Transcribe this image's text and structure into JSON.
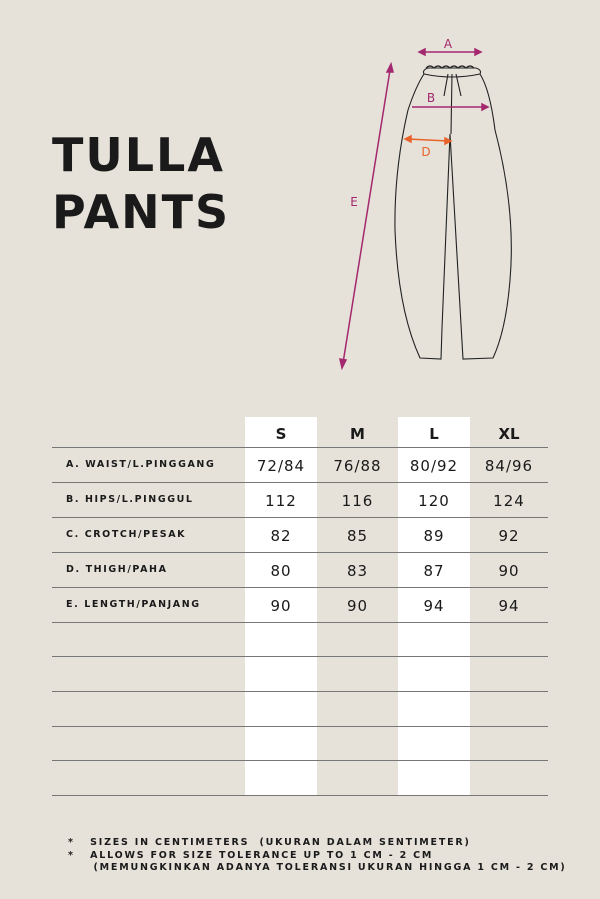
{
  "title": {
    "line1": "TULLA",
    "line2": "PANTS"
  },
  "diagram": {
    "labels": {
      "a": "A",
      "b": "B",
      "d": "D",
      "e": "E"
    },
    "colors": {
      "measure": "#a3286e",
      "crotch": "#e8622a"
    }
  },
  "table": {
    "sizes": [
      "S",
      "M",
      "L",
      "XL"
    ],
    "rows": [
      {
        "label": "A. WAIST/L.PINGGANG",
        "values": [
          "72/84",
          "76/88",
          "80/92",
          "84/96"
        ]
      },
      {
        "label": "B. HIPS/L.PINGGUL",
        "values": [
          "112",
          "116",
          "120",
          "124"
        ]
      },
      {
        "label": "C. CROTCH/PESAK",
        "values": [
          "82",
          "85",
          "89",
          "92"
        ]
      },
      {
        "label": "D. THIGH/PAHA",
        "values": [
          "80",
          "83",
          "87",
          "90"
        ]
      },
      {
        "label": "E. LENGTH/PANJANG",
        "values": [
          "90",
          "90",
          "94",
          "94"
        ]
      }
    ]
  },
  "notes": [
    "*   SIZES IN CENTIMETERS  (UKURAN DALAM SENTIMETER)",
    "*   ALLOWS FOR SIZE TOLERANCE UP TO 1 CM - 2 CM",
    "     (MEMUNGKINKAN ADANYA TOLERANSI UKURAN HINGGA 1 CM - 2 CM)"
  ]
}
